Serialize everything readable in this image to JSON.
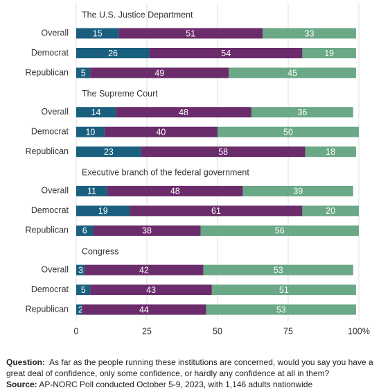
{
  "chart_data": {
    "type": "bar",
    "stacked": true,
    "orientation": "horizontal",
    "grid": true,
    "xlim": [
      0,
      100
    ],
    "xticks": [
      0,
      25,
      50,
      75,
      {
        "value": 100,
        "label": "100%"
      }
    ],
    "groups": [
      {
        "title": "The U.S. Justice Department",
        "categories": [
          "Overall",
          "Democrat",
          "Republican"
        ],
        "series": [
          {
            "color": "#1b5f7e",
            "values": [
              15,
              26,
              5
            ]
          },
          {
            "color": "#6a2c6a",
            "values": [
              51,
              54,
              49
            ]
          },
          {
            "color": "#6aa886",
            "values": [
              33,
              19,
              45
            ]
          }
        ]
      },
      {
        "title": "The Supreme Court",
        "categories": [
          "Overall",
          "Democrat",
          "Republican"
        ],
        "series": [
          {
            "color": "#1b5f7e",
            "values": [
              14,
              10,
              23
            ]
          },
          {
            "color": "#6a2c6a",
            "values": [
              48,
              40,
              58
            ]
          },
          {
            "color": "#6aa886",
            "values": [
              36,
              50,
              18
            ]
          }
        ]
      },
      {
        "title": "Executive branch of the federal government",
        "categories": [
          "Overall",
          "Democrat",
          "Republican"
        ],
        "series": [
          {
            "color": "#1b5f7e",
            "values": [
              11,
              19,
              6
            ]
          },
          {
            "color": "#6a2c6a",
            "values": [
              48,
              61,
              38
            ]
          },
          {
            "color": "#6aa886",
            "values": [
              39,
              20,
              56
            ]
          }
        ]
      },
      {
        "title": "Congress",
        "categories": [
          "Overall",
          "Democrat",
          "Republican"
        ],
        "series": [
          {
            "color": "#1b5f7e",
            "values": [
              3,
              5,
              2
            ]
          },
          {
            "color": "#6a2c6a",
            "values": [
              42,
              43,
              44
            ]
          },
          {
            "color": "#6aa886",
            "values": [
              53,
              51,
              53
            ]
          }
        ]
      }
    ]
  },
  "footer": {
    "question_label": "Question:",
    "question": "As far as the people running these institutions are concerned, would you say you have a great deal of confidence, only some confidence, or hardly any confidence at all in them?",
    "source_label": "Source:",
    "source": "AP-NORC Poll conducted October 5-9, 2023, with 1,146 adults nationwide"
  }
}
